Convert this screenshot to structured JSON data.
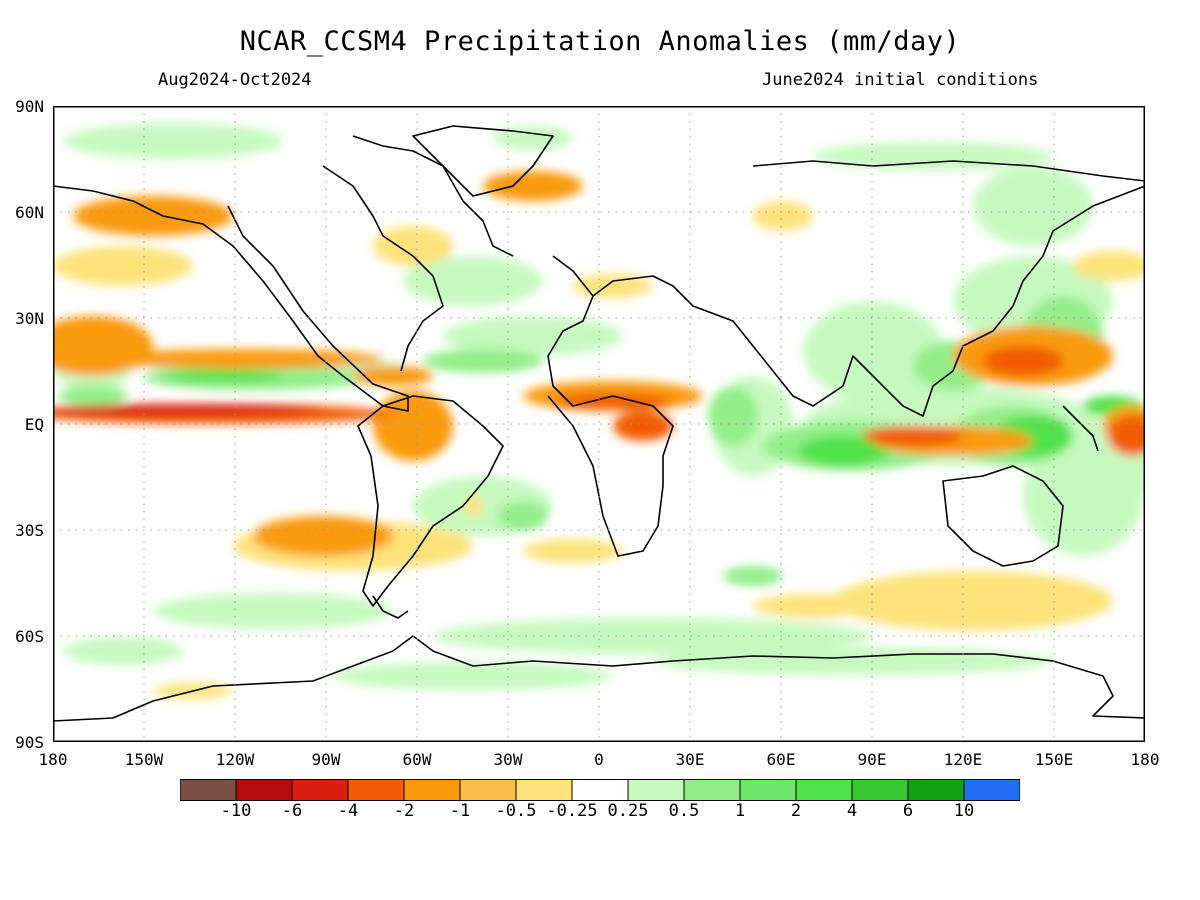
{
  "title": "NCAR_CCSM4 Precipitation Anomalies (mm/day)",
  "period_label": "Aug2024-Oct2024",
  "initial_conditions_label": "June2024 initial conditions",
  "lat_labels": [
    "90N",
    "60N",
    "30N",
    "EQ",
    "30S",
    "60S",
    "90S"
  ],
  "lon_labels": [
    "180",
    "150W",
    "120W",
    "90W",
    "60W",
    "30W",
    "0",
    "30E",
    "60E",
    "90E",
    "120E",
    "150E",
    "180"
  ],
  "colorbar": {
    "colors": [
      "#7a4f44",
      "#b50c0c",
      "#dc1e0e",
      "#f25c05",
      "#fa9a0a",
      "#fbbd46",
      "#fde27a",
      "#ffffff",
      "#c6f9bf",
      "#93ee89",
      "#6ee86a",
      "#4fe24a",
      "#37c832",
      "#12a112",
      "#1f6ff0"
    ],
    "labels": [
      "-10",
      "-6",
      "-4",
      "-2",
      "-1",
      "-0.5",
      "-0.25",
      "0.25",
      "0.5",
      "1",
      "2",
      "4",
      "6",
      "10"
    ]
  },
  "legend_palette": {
    "dry_strong": "#dc1e0e",
    "dry_moderate": "#f25c05",
    "dry_weak": "#fa9a0a",
    "dry_light": "#fde27a",
    "wet_light": "#c6f9bf",
    "wet_weak": "#93ee89",
    "wet_moderate": "#6ee86a",
    "wet_strong": "#37c832"
  }
}
